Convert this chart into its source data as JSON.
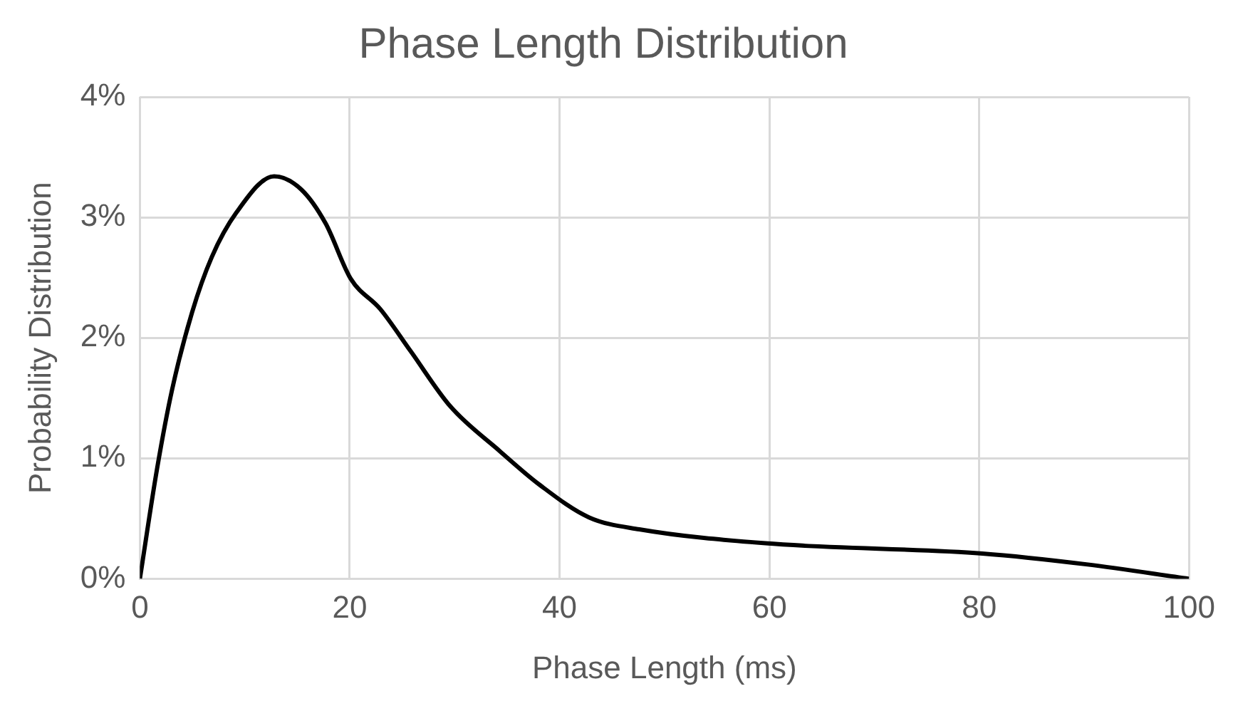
{
  "chart_data": {
    "type": "line",
    "title": "Phase Length Distribution",
    "xlabel": "Phase Length (ms)",
    "ylabel": "Probability Distribution",
    "x": [
      0,
      1.65,
      3.07,
      4.97,
      6.85,
      9.2,
      12.8,
      15.4,
      17.7,
      20.1,
      22.9,
      25.8,
      29.6,
      34.3,
      38.1,
      42.8,
      47.6,
      60.4,
      80.3,
      90.2,
      100
    ],
    "series": [
      {
        "color": "#000000",
        "values": [
          0,
          0.92,
          1.57,
          2.21,
          2.67,
          3.04,
          3.34,
          3.23,
          2.95,
          2.49,
          2.24,
          1.89,
          1.43,
          1.06,
          0.78,
          0.51,
          0.41,
          0.29,
          0.21,
          0.12,
          0
        ]
      }
    ],
    "xlim": [
      0,
      100
    ],
    "xticks": [
      0,
      20,
      40,
      60,
      80,
      100
    ],
    "ylim": [
      0,
      4
    ],
    "yticks": [
      {
        "value": 0,
        "label": "0%"
      },
      {
        "value": 1,
        "label": "1%"
      },
      {
        "value": 2,
        "label": "2%"
      },
      {
        "value": 3,
        "label": "3%"
      },
      {
        "value": 4,
        "label": "4%"
      }
    ],
    "grid": true,
    "legend": false,
    "marker": "none",
    "line_style": "solid"
  }
}
